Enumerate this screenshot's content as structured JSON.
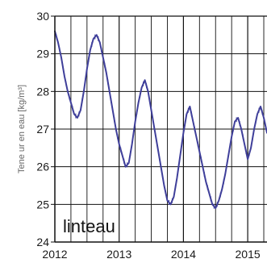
{
  "chart_data": {
    "type": "line",
    "title": "",
    "xlabel": "",
    "ylabel": "Tene ur en eau [kg/m³]",
    "annotation": "linteau",
    "xlim": [
      2012,
      2015.3
    ],
    "ylim": [
      24,
      30
    ],
    "x_ticks": [
      "2012",
      "2013",
      "2014",
      "2015"
    ],
    "y_ticks": [
      "24",
      "25",
      "26",
      "27",
      "28",
      "29",
      "30"
    ],
    "grid": true,
    "series": [
      {
        "x": [
          2012.0,
          2012.05,
          2012.1,
          2012.15,
          2012.2,
          2012.25,
          2012.3,
          2012.35,
          2012.4,
          2012.45,
          2012.5,
          2012.55,
          2012.6,
          2012.65,
          2012.7,
          2012.75,
          2012.8,
          2012.85,
          2012.9,
          2012.95,
          2013.0,
          2013.05,
          2013.1,
          2013.15,
          2013.2,
          2013.25,
          2013.3,
          2013.35,
          2013.4,
          2013.45,
          2013.5,
          2013.55,
          2013.6,
          2013.65,
          2013.7,
          2013.75,
          2013.8,
          2013.85,
          2013.9,
          2013.95,
          2014.0,
          2014.05,
          2014.1,
          2014.15,
          2014.2,
          2014.25,
          2014.3,
          2014.35,
          2014.4,
          2014.45,
          2014.5,
          2014.55,
          2014.6,
          2014.65,
          2014.7,
          2014.75,
          2014.8,
          2014.85,
          2014.9,
          2014.95,
          2015.0,
          2015.05,
          2015.1,
          2015.15,
          2015.2,
          2015.25,
          2015.3
        ],
        "values": [
          29.6,
          29.3,
          28.9,
          28.4,
          28.0,
          27.7,
          27.4,
          27.3,
          27.5,
          28.0,
          28.6,
          29.1,
          29.4,
          29.5,
          29.3,
          28.9,
          28.5,
          28.0,
          27.5,
          27.0,
          26.6,
          26.3,
          26.0,
          26.1,
          26.6,
          27.2,
          27.7,
          28.1,
          28.3,
          28.0,
          27.5,
          27.0,
          26.5,
          26.0,
          25.5,
          25.1,
          25.0,
          25.2,
          25.7,
          26.3,
          26.9,
          27.4,
          27.6,
          27.2,
          26.8,
          26.4,
          26.0,
          25.6,
          25.3,
          25.0,
          24.9,
          25.1,
          25.4,
          25.8,
          26.3,
          26.8,
          27.2,
          27.3,
          27.0,
          26.6,
          26.2,
          26.5,
          27.0,
          27.4,
          27.6,
          27.3,
          26.9
        ]
      }
    ],
    "colors": {
      "line": "#3f3f9a",
      "frame": "#111111",
      "grid": "#111111",
      "axis_label": "#666666"
    }
  }
}
